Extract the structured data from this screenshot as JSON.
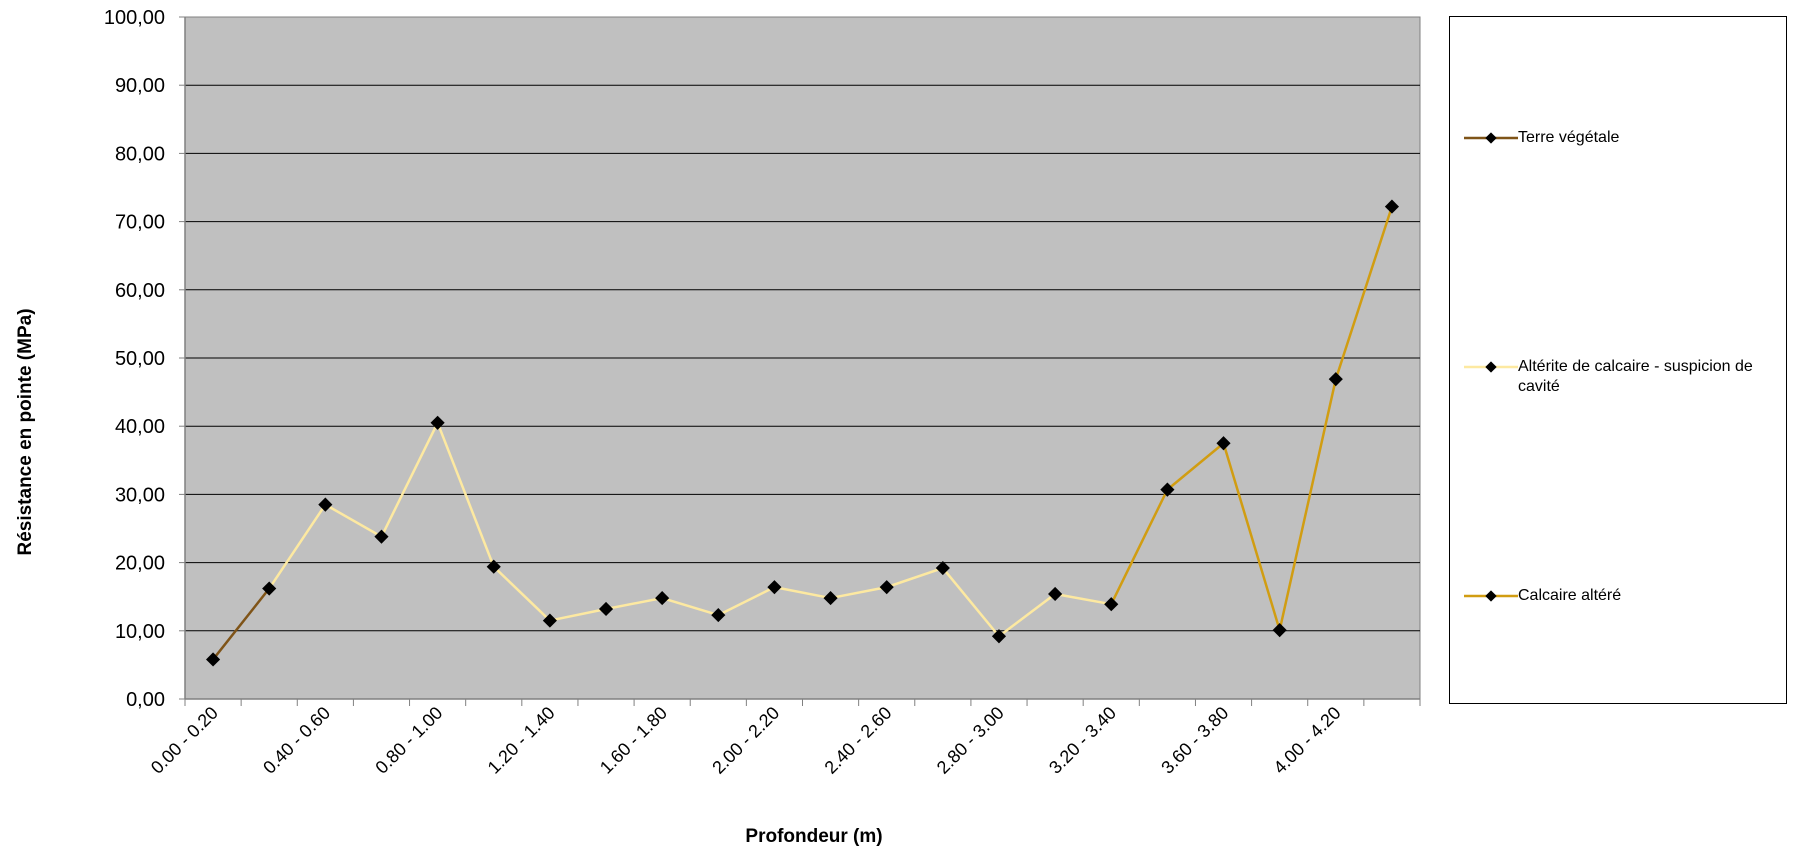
{
  "chart_data": {
    "type": "line",
    "ylabel": "Résistance en pointe (MPa)",
    "xlabel": "Profondeur (m)",
    "ylim": [
      0,
      100
    ],
    "yticks": [
      "0,00",
      "10,00",
      "20,00",
      "30,00",
      "40,00",
      "50,00",
      "60,00",
      "70,00",
      "80,00",
      "90,00",
      "100,00"
    ],
    "x_tick_labels": [
      "0.00 - 0.20",
      "0.40 - 0.60",
      "0.80 - 1.00",
      "1.20 - 1.40",
      "1.60 - 1.80",
      "2.00 - 2.20",
      "2.40 - 2.60",
      "2.80 - 3.00",
      "3.20 - 3.40",
      "3.60 - 3.80",
      "4.00 - 4.20"
    ],
    "grid": true,
    "plot_background": "#c0c0c0",
    "legend_position": "right",
    "series": [
      {
        "name": "Terre végétale",
        "color": "#7f5418",
        "points": [
          [
            0,
            5.8
          ],
          [
            1,
            16.2
          ]
        ]
      },
      {
        "name": "Altérite de calcaire - suspicion de cavité",
        "color": "#fde9a1",
        "points": [
          [
            1,
            16.2
          ],
          [
            2,
            28.5
          ],
          [
            3,
            23.8
          ],
          [
            4,
            40.5
          ],
          [
            5,
            19.4
          ],
          [
            6,
            11.5
          ],
          [
            7,
            13.2
          ],
          [
            8,
            14.8
          ],
          [
            9,
            12.3
          ],
          [
            10,
            16.4
          ],
          [
            11,
            14.8
          ],
          [
            12,
            16.4
          ],
          [
            13,
            19.2
          ],
          [
            14,
            9.2
          ],
          [
            15,
            15.4
          ],
          [
            16,
            13.9
          ]
        ]
      },
      {
        "name": "Calcaire altéré",
        "color": "#d19d12",
        "points": [
          [
            16,
            13.9
          ],
          [
            17,
            30.7
          ],
          [
            18,
            37.5
          ],
          [
            19,
            10.1
          ],
          [
            20,
            46.9
          ],
          [
            21,
            72.2
          ]
        ]
      }
    ]
  }
}
